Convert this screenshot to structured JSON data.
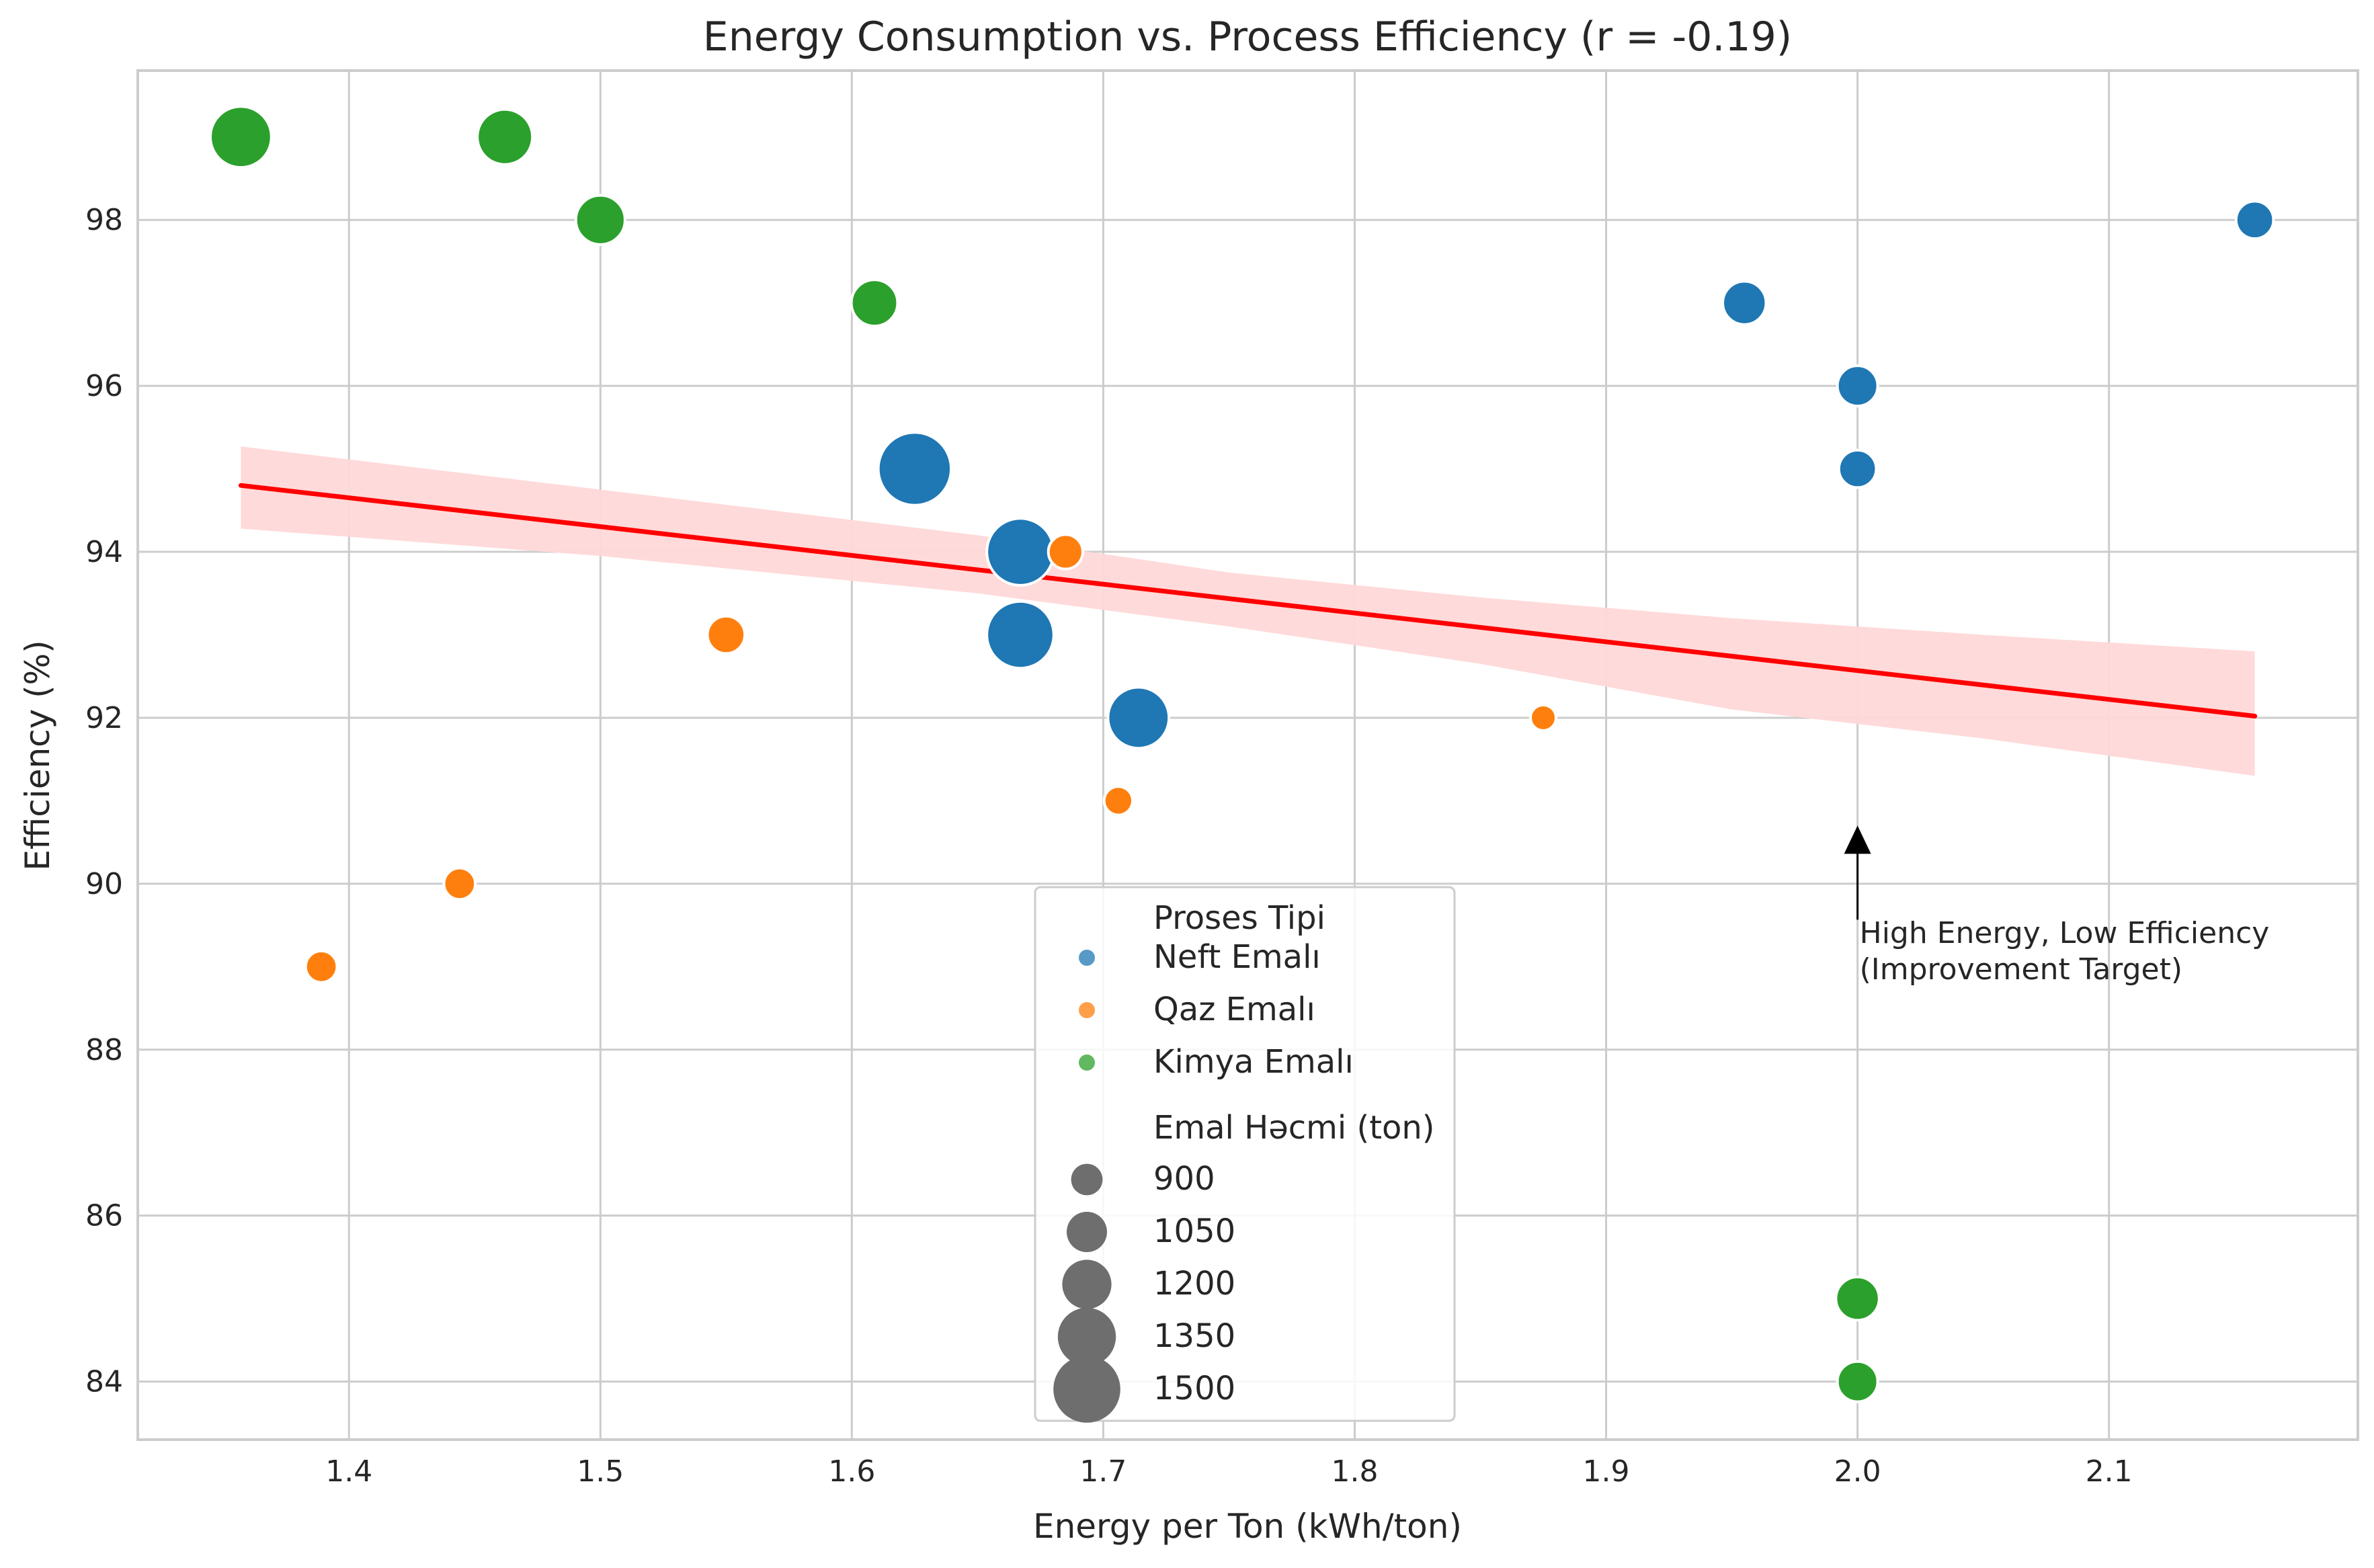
{
  "chart_data": {
    "type": "scatter",
    "title": "Energy Consumption vs. Process Efficiency (r = -0.19)",
    "xlabel": "Energy per Ton (kWh/ton)",
    "ylabel": "Efficiency (%)",
    "xlim": [
      1.316,
      2.199
    ],
    "ylim": [
      83.3,
      99.8
    ],
    "xticks": [
      "1.4",
      "1.5",
      "1.6",
      "1.7",
      "1.8",
      "1.9",
      "2.0",
      "2.1"
    ],
    "yticks": [
      "84",
      "86",
      "88",
      "90",
      "92",
      "94",
      "96",
      "98"
    ],
    "grid": true,
    "legend_position": "lower center",
    "hue_title": "Proses Tipi",
    "size_title": "Emal Həcmi (ton)",
    "size_legend": [
      900,
      1050,
      1200,
      1350,
      1500
    ],
    "series": [
      {
        "name": "Neft Emalı",
        "color": "#1f77b4",
        "points": [
          {
            "x": 2.158,
            "y": 98,
            "volume": 1000
          },
          {
            "x": 1.955,
            "y": 97,
            "volume": 1100
          },
          {
            "x": 2.0,
            "y": 96,
            "volume": 1050
          },
          {
            "x": 2.0,
            "y": 95,
            "volume": 1000
          },
          {
            "x": 1.625,
            "y": 95,
            "volume": 1600
          },
          {
            "x": 1.667,
            "y": 94,
            "volume": 1500
          },
          {
            "x": 1.667,
            "y": 93,
            "volume": 1500
          },
          {
            "x": 1.714,
            "y": 92,
            "volume": 1400
          }
        ]
      },
      {
        "name": "Qaz Emalı",
        "color": "#ff7f0e",
        "points": [
          {
            "x": 1.685,
            "y": 94,
            "volume": 950
          },
          {
            "x": 1.55,
            "y": 93,
            "volume": 1000
          },
          {
            "x": 1.875,
            "y": 92,
            "volume": 800
          },
          {
            "x": 1.706,
            "y": 91,
            "volume": 850
          },
          {
            "x": 1.444,
            "y": 90,
            "volume": 900
          },
          {
            "x": 1.389,
            "y": 89,
            "volume": 900
          }
        ]
      },
      {
        "name": "Kimya Emalı",
        "color": "#2ca02c",
        "points": [
          {
            "x": 1.357,
            "y": 99,
            "volume": 1400
          },
          {
            "x": 1.462,
            "y": 99,
            "volume": 1300
          },
          {
            "x": 1.5,
            "y": 98,
            "volume": 1200
          },
          {
            "x": 1.609,
            "y": 97,
            "volume": 1150
          },
          {
            "x": 2.0,
            "y": 85,
            "volume": 1100
          },
          {
            "x": 2.0,
            "y": 84,
            "volume": 1050
          }
        ]
      }
    ],
    "regression": {
      "color": "#ff0000",
      "band_color": "#ffd8d8",
      "line": [
        [
          1.357,
          94.8
        ],
        [
          2.158,
          92.02
        ]
      ],
      "ci_upper": [
        [
          1.357,
          95.27
        ],
        [
          1.5,
          94.75
        ],
        [
          1.65,
          94.2
        ],
        [
          1.75,
          93.75
        ],
        [
          1.85,
          93.45
        ],
        [
          1.95,
          93.2
        ],
        [
          2.05,
          93.0
        ],
        [
          2.158,
          92.8
        ]
      ],
      "ci_lower": [
        [
          1.357,
          94.28
        ],
        [
          1.5,
          93.95
        ],
        [
          1.65,
          93.5
        ],
        [
          1.75,
          93.1
        ],
        [
          1.85,
          92.65
        ],
        [
          1.95,
          92.1
        ],
        [
          2.05,
          91.75
        ],
        [
          2.158,
          91.3
        ]
      ]
    },
    "annotation": {
      "text_line1": "High Energy, Low Efficiency",
      "text_line2": "(Improvement Target)",
      "arrow_tip": [
        2.0,
        90.7
      ],
      "text_anchor": [
        2.0,
        89.4
      ]
    }
  }
}
